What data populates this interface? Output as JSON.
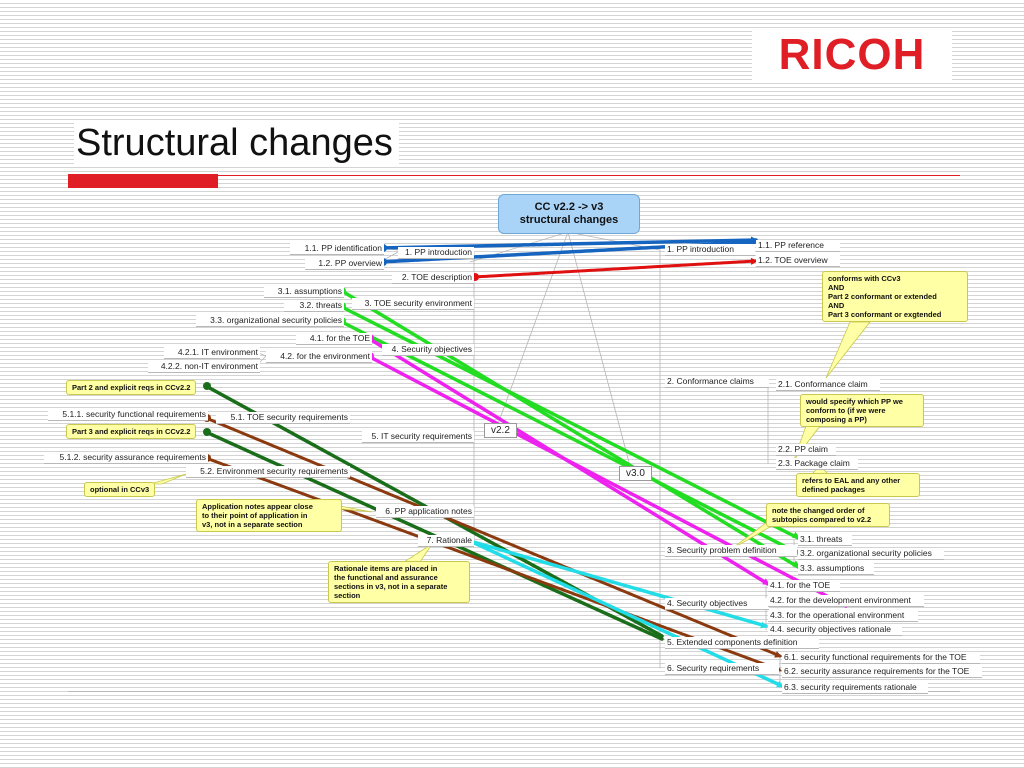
{
  "logo": "RICOH",
  "title": "Structural changes",
  "center_node": [
    "CC v2.2 -> v3",
    "structural changes"
  ],
  "versions": {
    "v22": "v2.2",
    "v30": "v3.0"
  },
  "left_branches": {
    "b1": "1. PP introduction",
    "b2": "2. TOE description",
    "b3": "3. TOE security environment",
    "b4": "4. Security objectives",
    "b5": "5. IT security requirements",
    "b6": "6. PP application notes",
    "b7": "7. Rationale"
  },
  "left_leaves": {
    "l11": "1.1. PP identification",
    "l12": "1.2. PP overview",
    "l31": "3.1. assumptions",
    "l32": "3.2. threats",
    "l33": "3.3. organizational security policies",
    "l41": "4.1. for the TOE",
    "l42": "4.2. for the environment",
    "l421": "4.2.1. IT environment",
    "l422": "4.2.2. non-IT environment",
    "l51": "5.1. TOE security requirements",
    "l511": "5.1.1. security functional requirements",
    "l512": "5.1.2. security assurance requirements",
    "l52": "5.2. Environment security requirements"
  },
  "right_branches": {
    "b1": "1. PP introduction",
    "b2": "2. Conformance claims",
    "b3": "3. Security problem definition",
    "b4": "4. Security objectives",
    "b5": "5. Extended components definition",
    "b6": "6. Security requirements"
  },
  "right_leaves": {
    "r11": "1.1. PP reference",
    "r12": "1.2. TOE overview",
    "r21": "2.1. Conformance claim",
    "r22": "2.2. PP claim",
    "r23": "2.3. Package claim",
    "r31": "3.1. threats",
    "r32": "3.2. organizational security policies",
    "r33": "3.3. assumptions",
    "r41": "4.1. for the TOE",
    "r42": "4.2. for the development environment",
    "r43": "4.3. for the operational environment",
    "r44": "4.4. security objectives rationale",
    "r61": "6.1. security functional requirements for the TOE",
    "r62": "6.2. security assurance requirements for the TOE",
    "r63": "6.3. security requirements rationale"
  },
  "notes": {
    "n_p2": "Part 2 and explicit reqs in CCv2.2",
    "n_p3": "Part 3 and explicit reqs in CCv2.2",
    "n_opt": "optional in CCv3",
    "n_appnotes": [
      "Application notes appear close",
      "to their point of application in",
      "v3, not in a separate section"
    ],
    "n_rationale": [
      "Rationale items are placed in",
      "the functional and assurance",
      "sections in v3, not in a separate",
      "section"
    ],
    "n_conforms": [
      "conforms with CCv3",
      "AND",
      "Part 2 conformant or extended",
      "AND",
      "Part 3 conformant or exgtended"
    ],
    "n_would": [
      "would specify which PP we",
      "conform to (if we were",
      "composing a PP)"
    ],
    "n_refers": [
      "refers to EAL and any other",
      "defined packages"
    ],
    "n_order": [
      "note the changed order of",
      "subtopics compared to v2.2"
    ]
  },
  "colors": {
    "blue": "#1565c0",
    "red": "#e01010",
    "green": "#22dd22",
    "magenta": "#ee22ee",
    "darkgreen": "#1a6e1a",
    "brown": "#8b3a0f",
    "cyan": "#22dde8",
    "brand_red": "#e01e26",
    "center_fill": "#a9d3f7",
    "note_fill": "#ffffa6"
  }
}
